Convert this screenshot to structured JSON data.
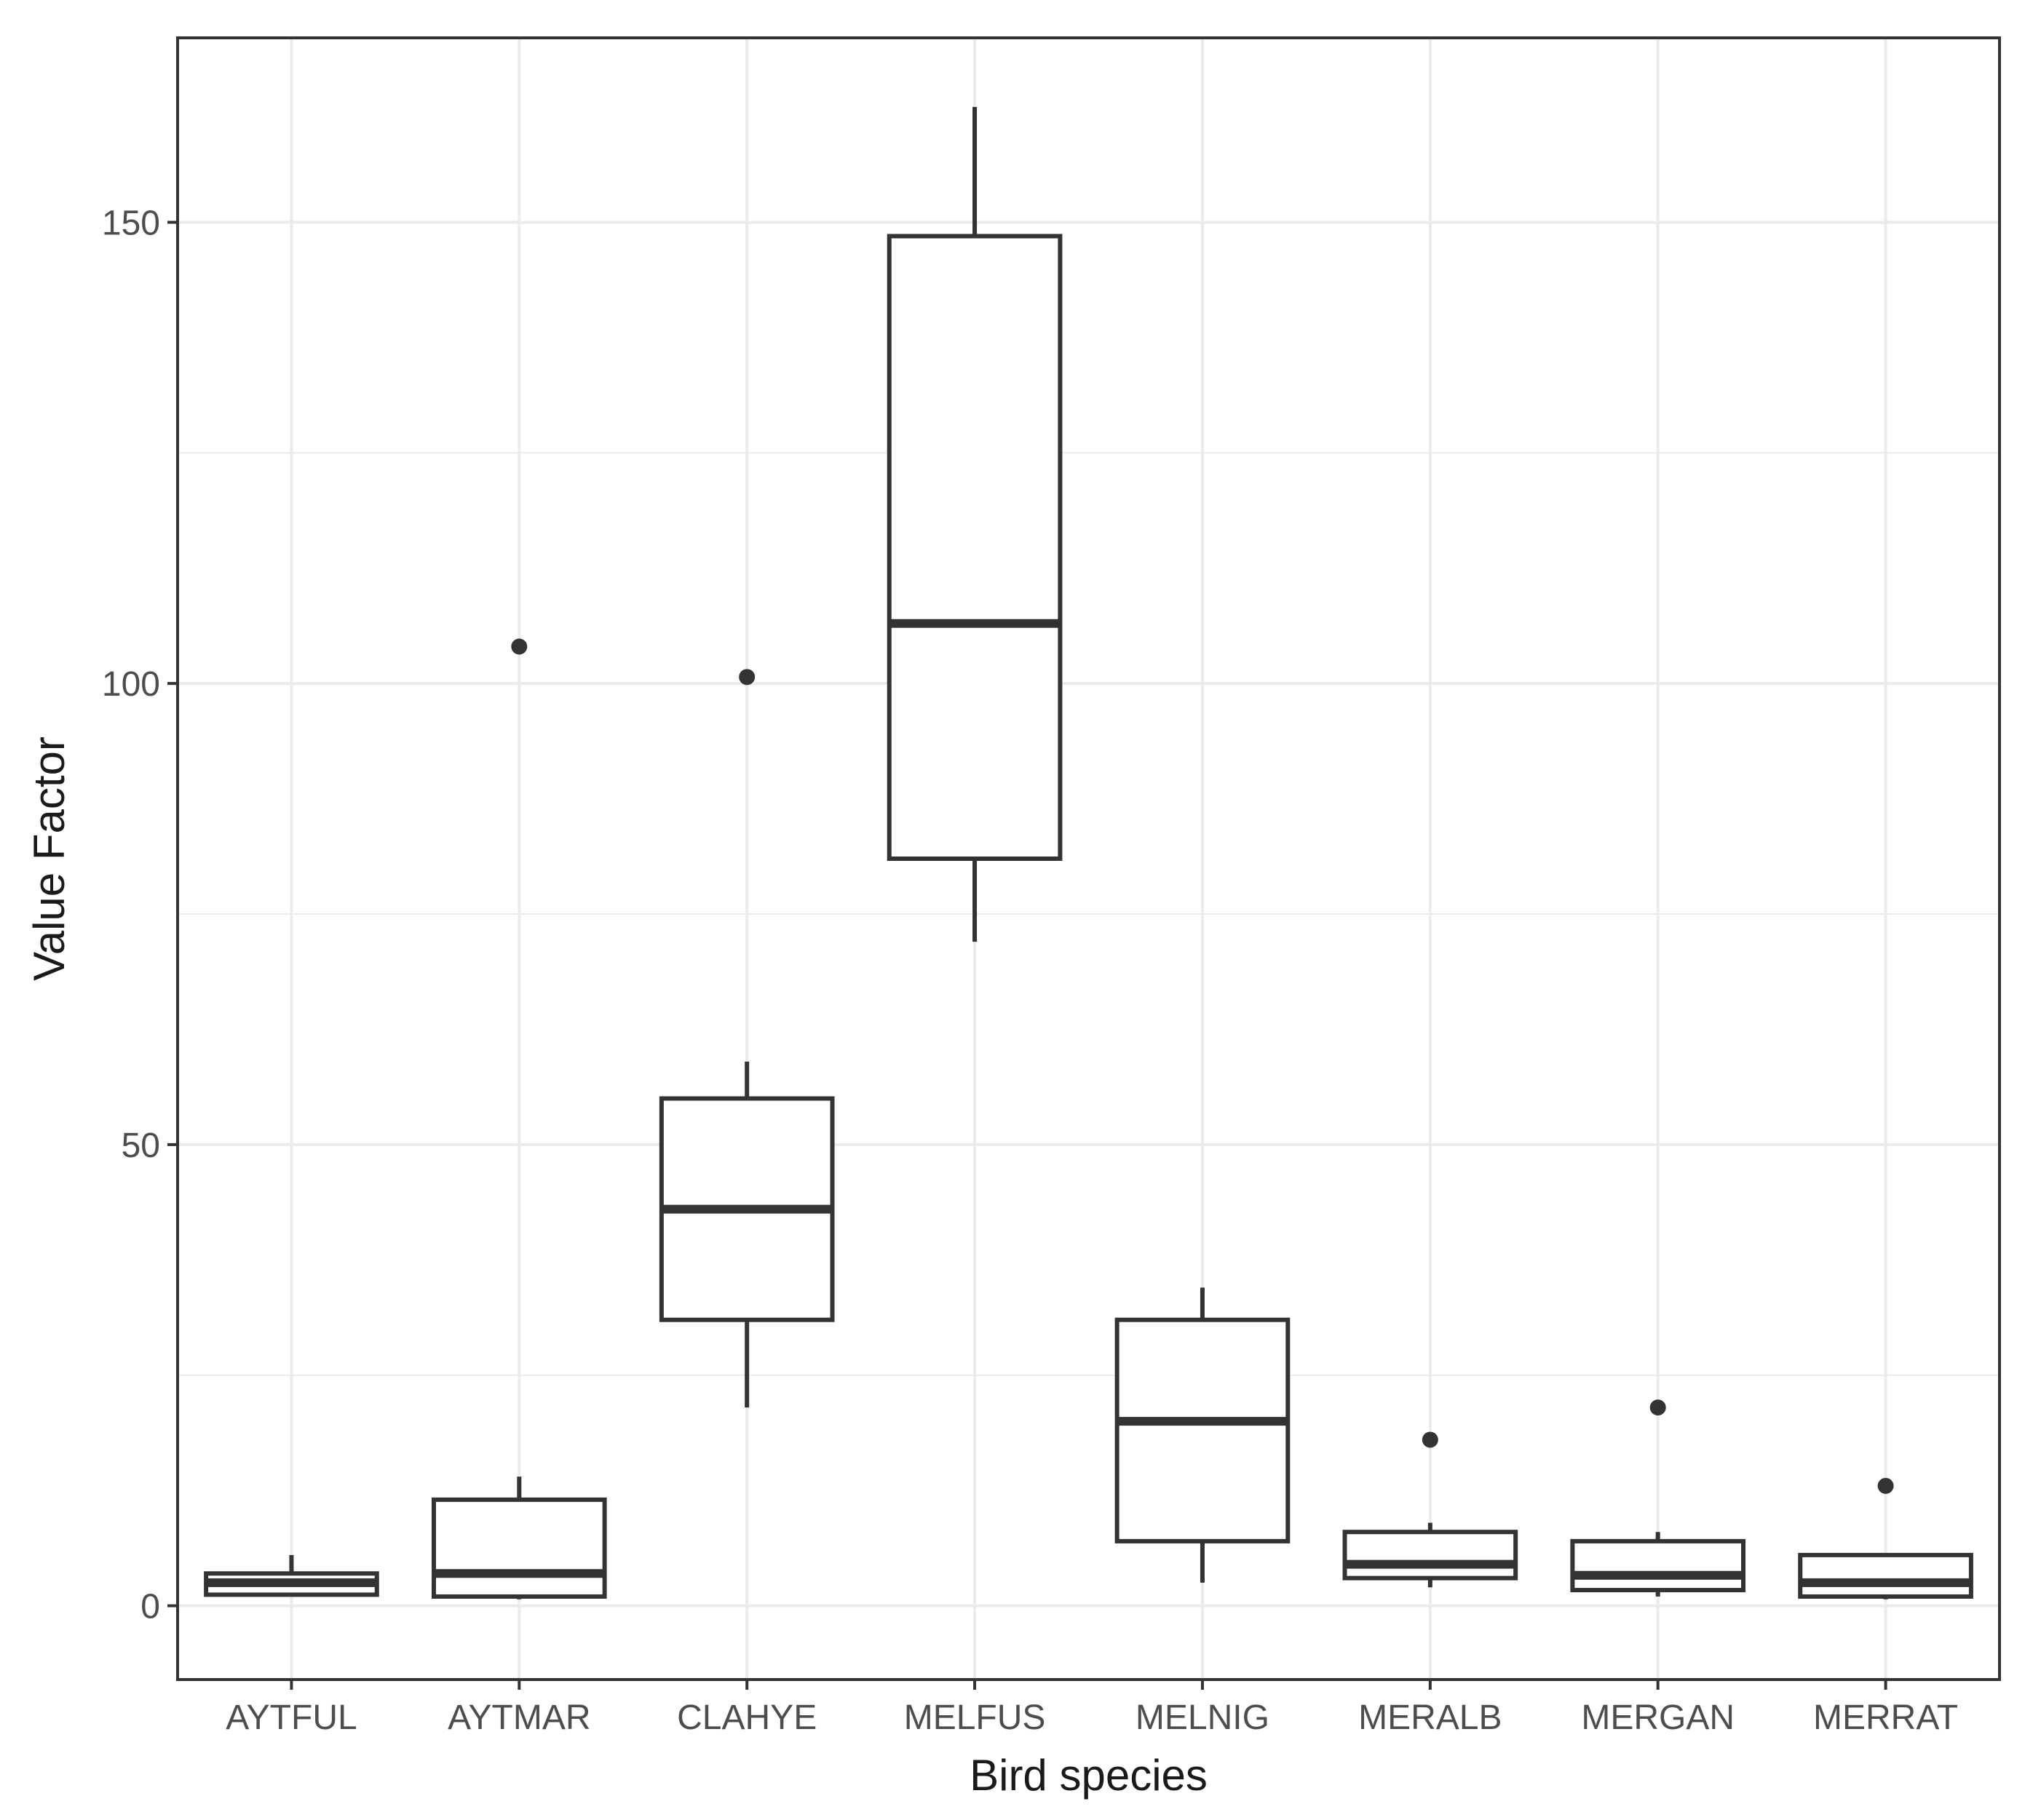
{
  "chart_data": {
    "type": "boxplot",
    "title": "",
    "xlabel": "Bird species",
    "ylabel": "Value Factor",
    "ylim": [
      -8,
      170
    ],
    "y_ticks": [
      0,
      50,
      100,
      150
    ],
    "y_minor_ticks": [
      25,
      75,
      125
    ],
    "grid": true,
    "colors": {
      "box": "#333333",
      "grid": "#ebebeb",
      "panel_border": "#333333",
      "background": "#ffffff"
    },
    "categories": [
      "AYTFUL",
      "AYTMAR",
      "CLAHYE",
      "MELFUS",
      "MELNIG",
      "MERALB",
      "MERGAN",
      "MERRAT"
    ],
    "boxes": [
      {
        "category": "AYTFUL",
        "whisker_low": 1.0,
        "q1": 1.2,
        "median": 2.5,
        "q3": 3.5,
        "whisker_high": 5.5,
        "outliers": []
      },
      {
        "category": "AYTMAR",
        "whisker_low": 0.7,
        "q1": 1.0,
        "median": 3.5,
        "q3": 11.5,
        "whisker_high": 14.0,
        "outliers": [
          104.0
        ]
      },
      {
        "category": "CLAHYE",
        "whisker_low": 21.5,
        "q1": 31.0,
        "median": 43.0,
        "q3": 55.0,
        "whisker_high": 59.0,
        "outliers": [
          100.7
        ]
      },
      {
        "category": "MELFUS",
        "whisker_low": 72.0,
        "q1": 81.0,
        "median": 106.5,
        "q3": 148.5,
        "whisker_high": 162.5,
        "outliers": []
      },
      {
        "category": "MELNIG",
        "whisker_low": 2.5,
        "q1": 7.0,
        "median": 20.0,
        "q3": 31.0,
        "whisker_high": 34.5,
        "outliers": []
      },
      {
        "category": "MERALB",
        "whisker_low": 2.0,
        "q1": 3.0,
        "median": 4.5,
        "q3": 8.0,
        "whisker_high": 9.0,
        "outliers": [
          18.0
        ]
      },
      {
        "category": "MERGAN",
        "whisker_low": 1.0,
        "q1": 1.7,
        "median": 3.3,
        "q3": 7.0,
        "whisker_high": 8.0,
        "outliers": [
          21.5
        ]
      },
      {
        "category": "MERRAT",
        "whisker_low": 0.7,
        "q1": 1.0,
        "median": 2.5,
        "q3": 5.5,
        "whisker_high": 5.5,
        "outliers": [
          13.0
        ]
      }
    ]
  }
}
